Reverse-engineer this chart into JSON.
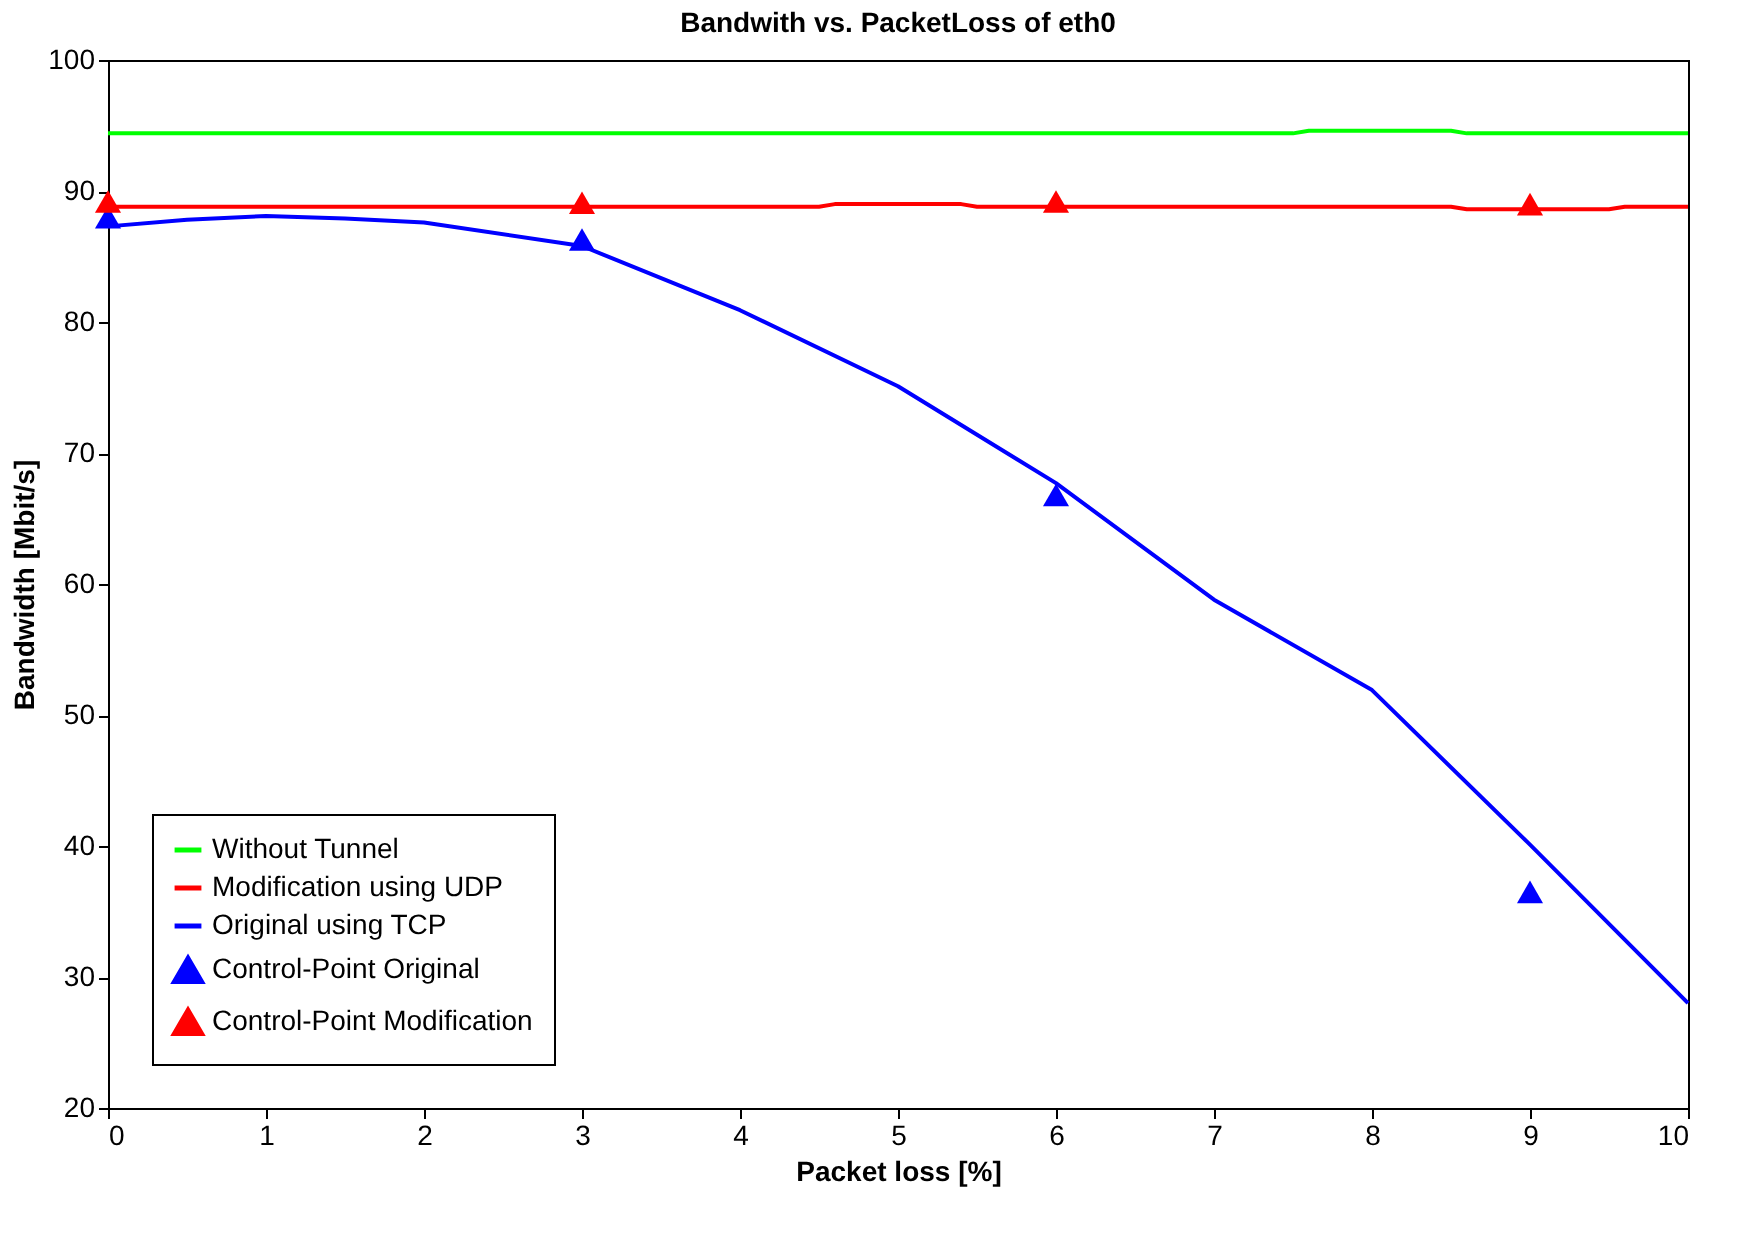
{
  "chart_data": {
    "type": "line",
    "title": "Bandwith vs. PacketLoss of eth0",
    "xlabel": "Packet loss [%]",
    "ylabel": "Bandwidth [Mbit/s]",
    "xlim": [
      0,
      10
    ],
    "xticks": [
      0,
      1,
      2,
      3,
      4,
      5,
      6,
      7,
      8,
      9,
      10
    ],
    "ylim": [
      20,
      100
    ],
    "yticks": [
      20,
      30,
      40,
      50,
      60,
      70,
      80,
      90,
      100
    ],
    "grid": false,
    "legend": "bottom left",
    "line_style": "solid",
    "series": [
      {
        "name": "Without Tunnel",
        "color": "#00ff00",
        "type": "line",
        "marker": "none",
        "x": [
          0,
          7.5,
          7.6,
          8.5,
          8.6,
          10
        ],
        "values": [
          94.4,
          94.4,
          94.6,
          94.6,
          94.4,
          94.4
        ]
      },
      {
        "name": "Modification using UDP",
        "color": "#ff0000",
        "type": "line",
        "marker": "none",
        "x": [
          0,
          4.5,
          4.6,
          5.4,
          5.5,
          8.5,
          8.6,
          9.5,
          9.6,
          10
        ],
        "values": [
          88.8,
          88.8,
          89.0,
          89.0,
          88.8,
          88.8,
          88.6,
          88.6,
          88.8,
          88.8
        ]
      },
      {
        "name": "Original using TCP",
        "color": "#0000ff",
        "type": "line",
        "marker": "none",
        "x": [
          0,
          0.5,
          1,
          1.5,
          2,
          3,
          4,
          5,
          6,
          7,
          8,
          9,
          10
        ],
        "values": [
          87.3,
          87.8,
          88.1,
          87.9,
          87.6,
          85.8,
          80.9,
          75.1,
          67.7,
          58.8,
          51.9,
          40.1,
          28.0
        ]
      },
      {
        "name": "Control-Point Original",
        "color": "#0000ff",
        "type": "scatter",
        "marker": "triangle",
        "x": [
          0,
          3,
          6,
          9
        ],
        "values": [
          88.0,
          86.3,
          66.8,
          36.5
        ]
      },
      {
        "name": "Control-Point Modification",
        "color": "#ff0000",
        "type": "scatter",
        "marker": "triangle",
        "x": [
          0,
          3,
          6,
          9
        ],
        "values": [
          89.2,
          89.1,
          89.2,
          89.0
        ]
      }
    ]
  }
}
